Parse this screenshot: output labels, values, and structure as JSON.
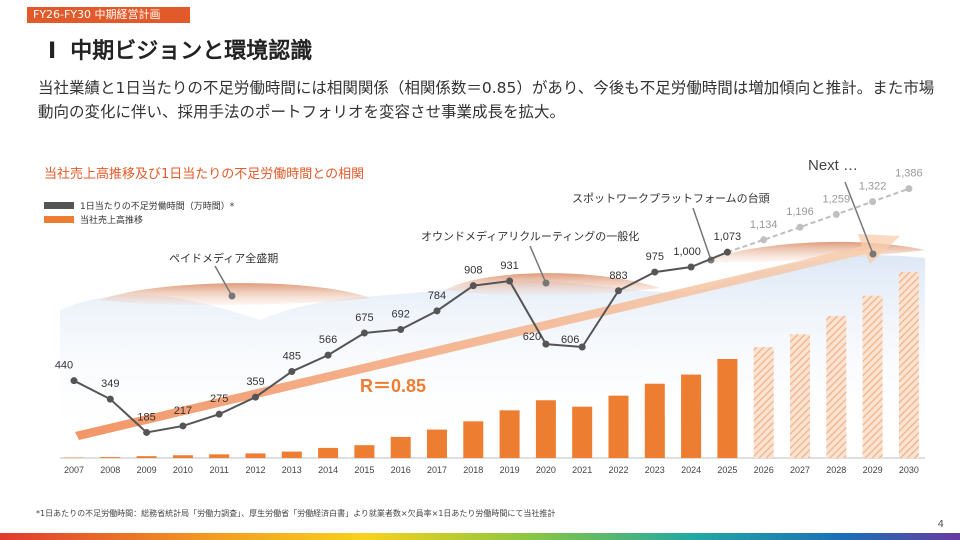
{
  "header": {
    "tag": "FY26-FY30 中期経営計画",
    "section_number": "Ⅰ",
    "title": "中期ビジョンと環境認識"
  },
  "description": "当社業績と1日当たりの不足労働時間には相関関係（相関係数＝0.85）があり、今後も不足労働時間は増加傾向と推計。また市場動向の変化に伴い、採用手法のポートフォリオを変容させ事業成長を拡大。",
  "chart_title": "当社売上高推移及び1日当たりの不足労働時間との相関",
  "legend": [
    {
      "label": "1日当たりの不足労働時間（万時間）*",
      "color": "#555555"
    },
    {
      "label": "当社売上高推移",
      "color": "#ed7d31"
    }
  ],
  "annotations": {
    "paid_media": "ペイドメディア全盛期",
    "owned_media": "オウンドメディアリクルーティングの一般化",
    "spot_work": "スポットワークプラットフォームの台頭",
    "next": "Next …",
    "correlation": "R＝0.85"
  },
  "chart_data": {
    "type": "bar",
    "categories": [
      "2007",
      "2008",
      "2009",
      "2010",
      "2011",
      "2012",
      "2013",
      "2014",
      "2015",
      "2016",
      "2017",
      "2018",
      "2019",
      "2020",
      "2021",
      "2022",
      "2023",
      "2024",
      "2025",
      "2026",
      "2027",
      "2028",
      "2029",
      "2030"
    ],
    "series": [
      {
        "name": "当社売上高推移",
        "type": "bar",
        "values": [
          0.5,
          1,
          2,
          3,
          4,
          5,
          7,
          11,
          14,
          23,
          31,
          40,
          52,
          63,
          56,
          68,
          81,
          91,
          108,
          121,
          135,
          155,
          177,
          203
        ],
        "projected_from_index": 19
      },
      {
        "name": "1日当たりの不足労働時間（万時間）*",
        "type": "line",
        "values": [
          440,
          349,
          185,
          217,
          275,
          359,
          485,
          566,
          675,
          692,
          784,
          908,
          931,
          620,
          606,
          883,
          975,
          1000,
          1073,
          1134,
          1196,
          1259,
          1322,
          1386
        ],
        "labels": [
          "440",
          "349",
          "185",
          "217",
          "275",
          "359",
          "485",
          "566",
          "675",
          "692",
          "784",
          "908",
          "931",
          "620",
          "606",
          "883",
          "975",
          "1,000",
          "1,073",
          "1,134",
          "1,196",
          "1,259",
          "1,322",
          "1,386"
        ],
        "projected_from_index": 19
      }
    ],
    "line_ylim": [
      0,
      1600
    ],
    "bar_ylim": [
      0,
      240
    ],
    "colors": {
      "bar": "#ed7d31",
      "bar_projected": "#f4b183",
      "line": "#555555",
      "line_projected": "#bfbfbf"
    }
  },
  "footnote": "*1日あたりの不足労働時間：総務省統計局「労働力調査」、厚生労働省「労働経済白書」より就業者数×欠員率×1日あたり労働時間にて当社推計",
  "page_number": "4",
  "colors": {
    "accent": "#e35a2a"
  }
}
